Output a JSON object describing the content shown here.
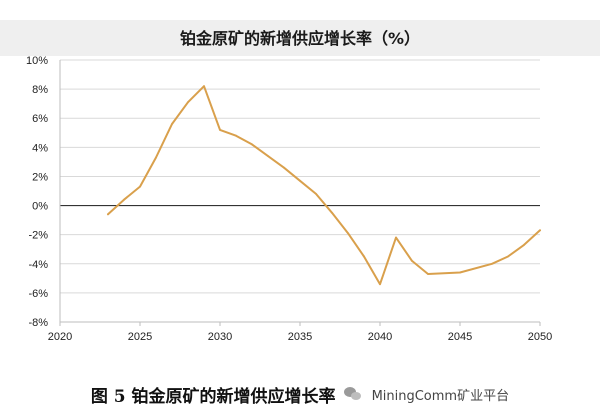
{
  "chart_data": {
    "type": "line",
    "title": "铂金原矿的新增供应增长率（%）",
    "xlabel": "",
    "ylabel": "",
    "xlim": [
      2020,
      2050
    ],
    "ylim": [
      -8,
      10
    ],
    "x_ticks": [
      "2020",
      "2025",
      "2030",
      "2035",
      "2040",
      "2045",
      "2050"
    ],
    "y_ticks": [
      "10%",
      "8%",
      "6%",
      "4%",
      "2%",
      "0%",
      "-2%",
      "-4%",
      "-6%",
      "-8%"
    ],
    "y_tick_values": [
      10,
      8,
      6,
      4,
      2,
      0,
      -2,
      -4,
      -6,
      -8
    ],
    "x_tick_values": [
      2020,
      2025,
      2030,
      2035,
      2040,
      2045,
      2050
    ],
    "grid": {
      "horizontal": true,
      "vertical": false
    },
    "legend": "none",
    "series": [
      {
        "color": "#d9a04c",
        "points": [
          {
            "x": 2023,
            "y": -0.6
          },
          {
            "x": 2024,
            "y": 0.4
          },
          {
            "x": 2025,
            "y": 1.3
          },
          {
            "x": 2026,
            "y": 3.3
          },
          {
            "x": 2027,
            "y": 5.6
          },
          {
            "x": 2028,
            "y": 7.1
          },
          {
            "x": 2029,
            "y": 8.2
          },
          {
            "x": 2030,
            "y": 5.2
          },
          {
            "x": 2031,
            "y": 4.8
          },
          {
            "x": 2032,
            "y": 4.2
          },
          {
            "x": 2033,
            "y": 3.4
          },
          {
            "x": 2034,
            "y": 2.6
          },
          {
            "x": 2035,
            "y": 1.7
          },
          {
            "x": 2036,
            "y": 0.8
          },
          {
            "x": 2037,
            "y": -0.5
          },
          {
            "x": 2038,
            "y": -1.9
          },
          {
            "x": 2039,
            "y": -3.5
          },
          {
            "x": 2040,
            "y": -5.4
          },
          {
            "x": 2041,
            "y": -2.2
          },
          {
            "x": 2042,
            "y": -3.8
          },
          {
            "x": 2043,
            "y": -4.7
          },
          {
            "x": 2045,
            "y": -4.6
          },
          {
            "x": 2047,
            "y": -4.0
          },
          {
            "x": 2048,
            "y": -3.5
          },
          {
            "x": 2049,
            "y": -2.7
          },
          {
            "x": 2050,
            "y": -1.7
          }
        ]
      }
    ]
  },
  "caption": {
    "text": "图 5 铂金原矿的新增供应增长率",
    "source": "MiningComm矿业平台"
  },
  "colors": {
    "line": "#d9a04c",
    "grid": "#d9d9d9",
    "zero_line": "#333333",
    "title_bg": "#efefef"
  },
  "icons": {
    "watermark": "wechat-icon"
  }
}
